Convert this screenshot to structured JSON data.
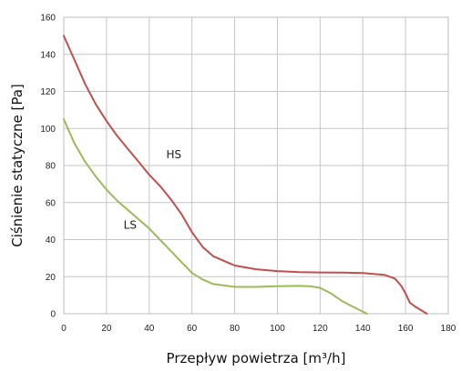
{
  "chart_data": {
    "type": "line",
    "title": "",
    "xlabel": "Przepływ powietrza [m³/h]",
    "ylabel": "Ciśnienie statyczne [Pa]",
    "xlim": [
      0,
      180
    ],
    "ylim": [
      0,
      160
    ],
    "xticks": [
      "0",
      "20",
      "40",
      "60",
      "80",
      "100",
      "120",
      "140",
      "160",
      "180"
    ],
    "yticks": [
      "0",
      "20",
      "40",
      "60",
      "80",
      "100",
      "120",
      "140",
      "160"
    ],
    "grid": true,
    "series": [
      {
        "name": "HS",
        "color": "#c0504d",
        "label_at": [
          48,
          84
        ],
        "x": [
          0,
          5,
          10,
          15,
          20,
          25,
          30,
          35,
          40,
          45,
          50,
          55,
          60,
          65,
          70,
          80,
          90,
          100,
          110,
          120,
          130,
          140,
          150,
          155,
          158,
          160,
          162,
          165,
          170
        ],
        "y": [
          150,
          137,
          124,
          113,
          104,
          96,
          89,
          82,
          75,
          69,
          62,
          54,
          44,
          36,
          31,
          26,
          24,
          23,
          22.5,
          22.3,
          22.2,
          22,
          21,
          19,
          15,
          11,
          6,
          3.5,
          0
        ]
      },
      {
        "name": "LS",
        "color": "#9bbb59",
        "label_at": [
          28,
          46
        ],
        "x": [
          0,
          5,
          10,
          15,
          20,
          25,
          30,
          35,
          40,
          45,
          50,
          55,
          60,
          65,
          70,
          80,
          90,
          100,
          110,
          115,
          120,
          125,
          130,
          135,
          142
        ],
        "y": [
          105,
          92,
          82,
          74,
          67,
          61,
          56,
          51,
          46,
          40,
          34,
          28,
          22,
          18.5,
          16,
          14.5,
          14.5,
          14.8,
          15,
          14.8,
          14,
          11,
          7,
          4,
          0
        ]
      }
    ]
  }
}
